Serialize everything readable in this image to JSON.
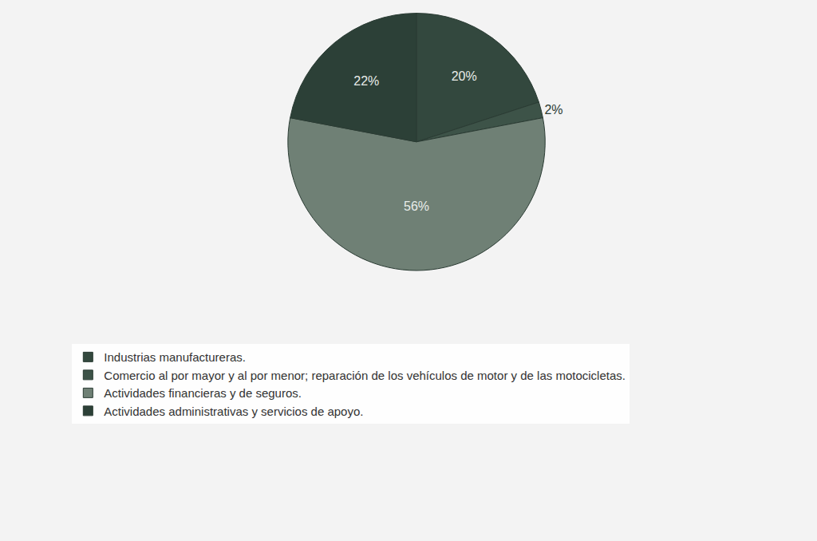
{
  "chart_data": {
    "type": "pie",
    "categories": [
      "Industrias manufactureras.",
      "Comercio al por mayor y al por menor; reparación de los vehículos de motor y de las motocicletas.",
      "Actividades financieras y de seguros.",
      "Actividades administrativas y servicios de apoyo."
    ],
    "values": [
      20,
      2,
      56,
      22
    ],
    "value_labels": [
      "20%",
      "2%",
      "56%",
      "22%"
    ],
    "colors": [
      "#33483e",
      "#3d5348",
      "#6f8075",
      "#2c4037"
    ],
    "data_labels": true,
    "legend": "bottom-left"
  }
}
